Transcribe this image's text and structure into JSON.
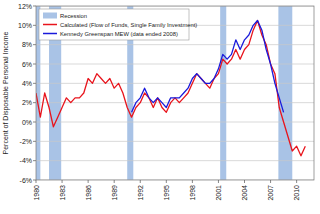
{
  "chart_data": {
    "type": "line",
    "y_label": "Percent of Disposable Personal Income",
    "x": [
      1980,
      1980.5,
      1981,
      1981.5,
      1982,
      1982.5,
      1983,
      1983.5,
      1984,
      1984.5,
      1985,
      1985.5,
      1986,
      1986.5,
      1987,
      1987.5,
      1988,
      1988.5,
      1989,
      1989.5,
      1990,
      1990.5,
      1991,
      1991.5,
      1992,
      1992.5,
      1993,
      1993.5,
      1994,
      1994.5,
      1995,
      1995.5,
      1996,
      1996.5,
      1997,
      1997.5,
      1998,
      1998.5,
      1999,
      1999.5,
      2000,
      2000.5,
      2001,
      2001.5,
      2002,
      2002.5,
      2003,
      2003.5,
      2004,
      2004.5,
      2005,
      2005.5,
      2006,
      2006.5,
      2007,
      2007.5,
      2008,
      2008.5,
      2009,
      2009.5,
      2010,
      2010.5,
      2011
    ],
    "series": [
      {
        "name": "Calculated (Flow of Funds, Single Family Investment)",
        "color": "#e8141c",
        "values": [
          3,
          0.5,
          3,
          1.5,
          -0.5,
          0.5,
          1.5,
          2.5,
          2,
          2.5,
          2.5,
          3,
          4.5,
          4,
          5,
          4.5,
          4,
          4.5,
          3.5,
          4,
          3,
          1.5,
          0.5,
          1.5,
          2,
          3,
          2.5,
          1.5,
          2.5,
          1.5,
          1,
          2,
          2.5,
          2,
          2.5,
          3,
          4,
          5,
          4.5,
          4,
          3.5,
          4.5,
          5,
          6.5,
          6,
          6.5,
          7.5,
          6.5,
          7.5,
          8,
          9.5,
          10.5,
          9,
          8,
          6,
          5,
          1.5,
          0,
          -1.5,
          -3,
          -2.5,
          -3.5,
          -2.5
        ]
      },
      {
        "name": "Kennedy Greenspan MEW (data ended 2008)",
        "color": "#1a1adb",
        "values": [
          null,
          null,
          null,
          null,
          null,
          null,
          null,
          null,
          null,
          null,
          null,
          null,
          null,
          null,
          null,
          null,
          null,
          null,
          null,
          null,
          null,
          null,
          1,
          2,
          2.5,
          3.5,
          2.5,
          2,
          2.5,
          2,
          1.5,
          2.5,
          2.5,
          2.5,
          3,
          3.5,
          4.5,
          5,
          4.5,
          4,
          4,
          4.5,
          5.5,
          7,
          6.5,
          7,
          8.5,
          7.5,
          8.5,
          9,
          10,
          10.5,
          9.5,
          7.5,
          6,
          4,
          2.5,
          1,
          null,
          null,
          null,
          null,
          null
        ]
      }
    ],
    "recession": {
      "name": "Recession",
      "color": "#a9c3e6",
      "ranges": [
        [
          1980,
          1980.5
        ],
        [
          1981.5,
          1982.9
        ],
        [
          1990.5,
          1991.2
        ],
        [
          2001.2,
          2001.9
        ],
        [
          2007.9,
          2009.5
        ]
      ]
    },
    "xlim": [
      1980,
      2012
    ],
    "xticks": [
      1980,
      1983,
      1986,
      1989,
      1992,
      1995,
      1998,
      2001,
      2004,
      2007,
      2010
    ],
    "ylim": [
      -6,
      12
    ],
    "yticks": [
      {
        "value": -6,
        "label": "-6%"
      },
      {
        "value": -4,
        "label": "-4%"
      },
      {
        "value": -2,
        "label": "-2%"
      },
      {
        "value": 0,
        "label": "0%"
      },
      {
        "value": 2,
        "label": "2%"
      },
      {
        "value": 4,
        "label": "4%"
      },
      {
        "value": 6,
        "label": "6%"
      },
      {
        "value": 8,
        "label": "8%"
      },
      {
        "value": 10,
        "label": "10%"
      },
      {
        "value": 12,
        "label": "12%"
      }
    ],
    "grid": true,
    "legend": "upper left"
  }
}
